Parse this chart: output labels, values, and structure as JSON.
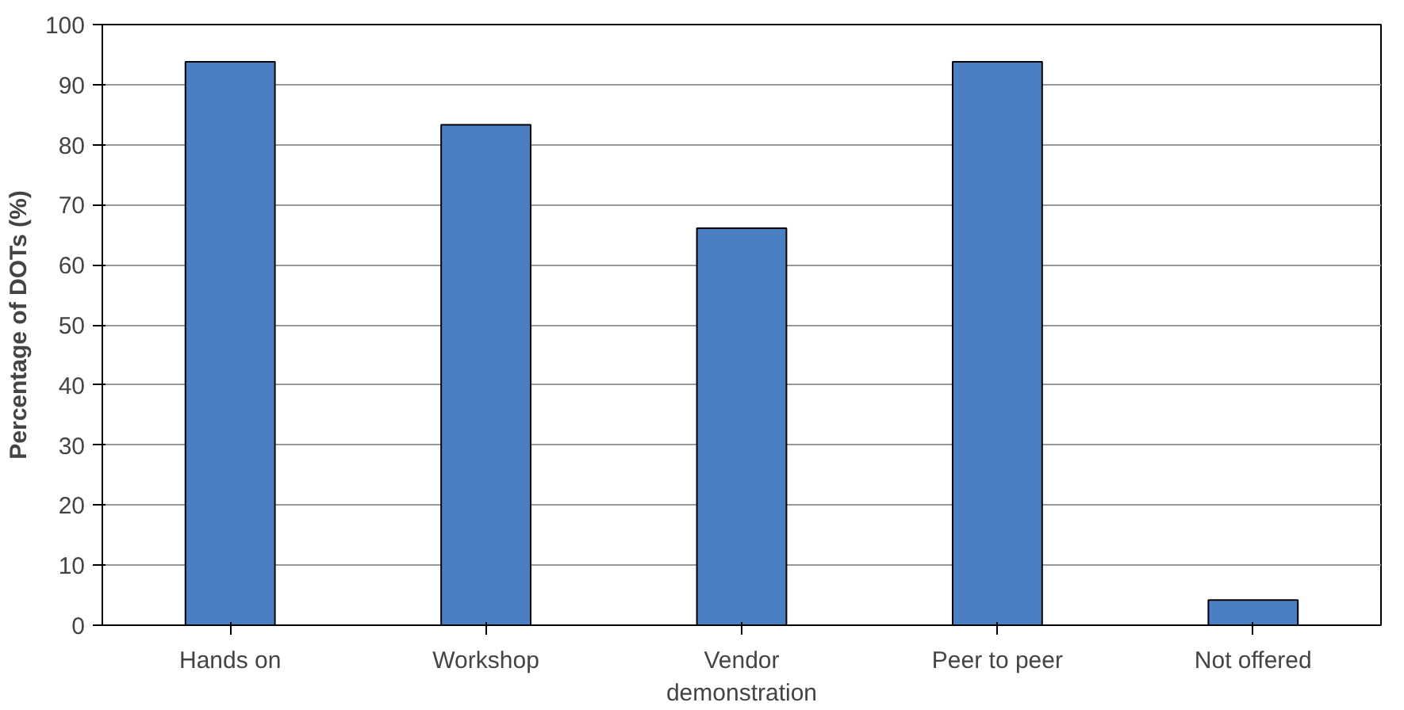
{
  "chart_data": {
    "type": "bar",
    "ylabel": "Percentage of DOTs (%)",
    "categories": [
      "Hands on",
      "Workshop",
      "Vendor\ndemonstration",
      "Peer to peer",
      "Not offered"
    ],
    "values": [
      93.8,
      83.3,
      66.1,
      93.8,
      4.2
    ],
    "color": "#4a7fc4",
    "ylim": [
      0,
      100
    ],
    "yticks": [
      0,
      10,
      20,
      30,
      40,
      50,
      60,
      70,
      80,
      90,
      100
    ],
    "grid": "y"
  }
}
